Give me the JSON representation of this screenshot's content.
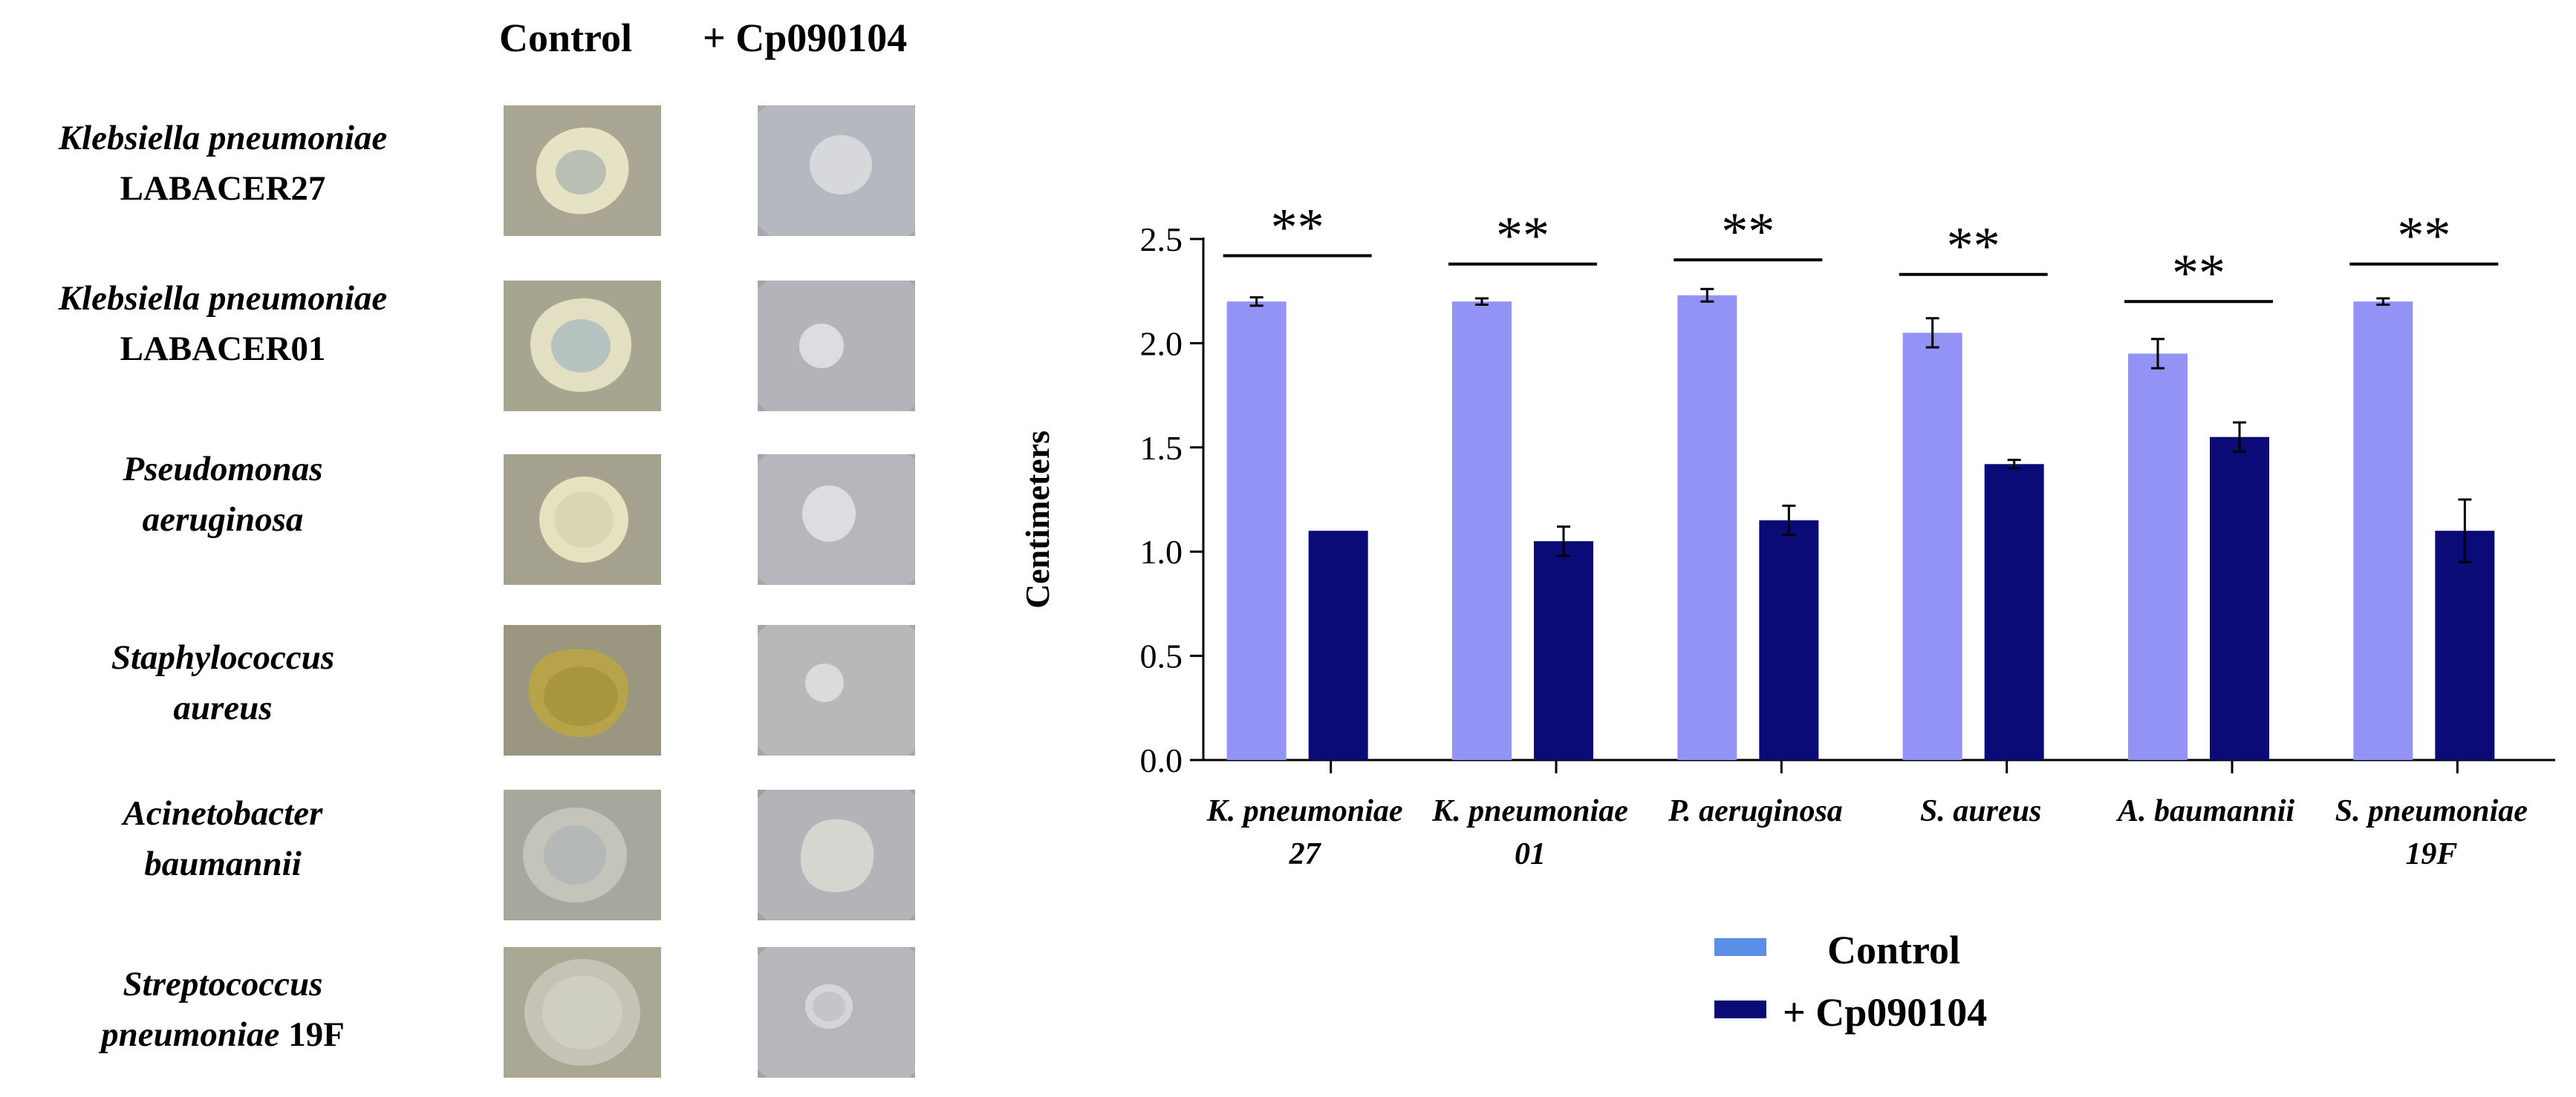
{
  "panel_left": {
    "column_headers": [
      "Control",
      "+ Cp090104"
    ],
    "species": [
      {
        "name": "Klebsiella pneumoniae",
        "strain": "LABACER27"
      },
      {
        "name": "Klebsiella pneumoniae",
        "strain": "LABACER01"
      },
      {
        "name": "Pseudomonas",
        "strain": "aeruginosa"
      },
      {
        "name": "Staphylococcus",
        "strain": "aureus"
      },
      {
        "name": "Acinetobacter",
        "strain": "baumannii"
      },
      {
        "name": "Streptococcus",
        "strain": "pneumoniae",
        "strain_suffix": "19F"
      }
    ]
  },
  "chart_data": {
    "type": "bar",
    "title": "",
    "xlabel": "",
    "ylabel": "Centimeters",
    "ylim": [
      0,
      2.5
    ],
    "yticks": [
      "0.0",
      "0.5",
      "1.0",
      "1.5",
      "2.0",
      "2.5"
    ],
    "categories": [
      [
        "K. pneumoniae",
        "27"
      ],
      [
        "K. pneumoniae",
        "01"
      ],
      [
        "P. aeruginosa"
      ],
      [
        "S. aureus"
      ],
      [
        "A. baumannii"
      ],
      [
        "S. pneumoniae",
        "19F"
      ]
    ],
    "series": [
      {
        "name": "Control",
        "color": "#9393f5",
        "legend_color": "#5b8fe6",
        "values": [
          2.2,
          2.2,
          2.23,
          2.05,
          1.95,
          2.2
        ],
        "errors": [
          0.02,
          0.015,
          0.03,
          0.07,
          0.07,
          0.015
        ]
      },
      {
        "name": "+ Cp090104",
        "color": "#0b0b78",
        "legend_color": "#0b0b78",
        "values": [
          1.1,
          1.05,
          1.15,
          1.42,
          1.55,
          1.1
        ],
        "errors": [
          0.0,
          0.07,
          0.07,
          0.02,
          0.07,
          0.15
        ]
      }
    ],
    "significance": [
      "**",
      "**",
      "**",
      "**",
      "**",
      "**"
    ],
    "significance_line_y": [
      2.42,
      2.38,
      2.4,
      2.33,
      2.2,
      2.38
    ],
    "legend": [
      "Control",
      "+ Cp090104"
    ],
    "legend_position": "bottom-center"
  },
  "colors": {
    "control": "#9393f5",
    "treated": "#0b0b78",
    "legend_control": "#5b8fe6"
  }
}
